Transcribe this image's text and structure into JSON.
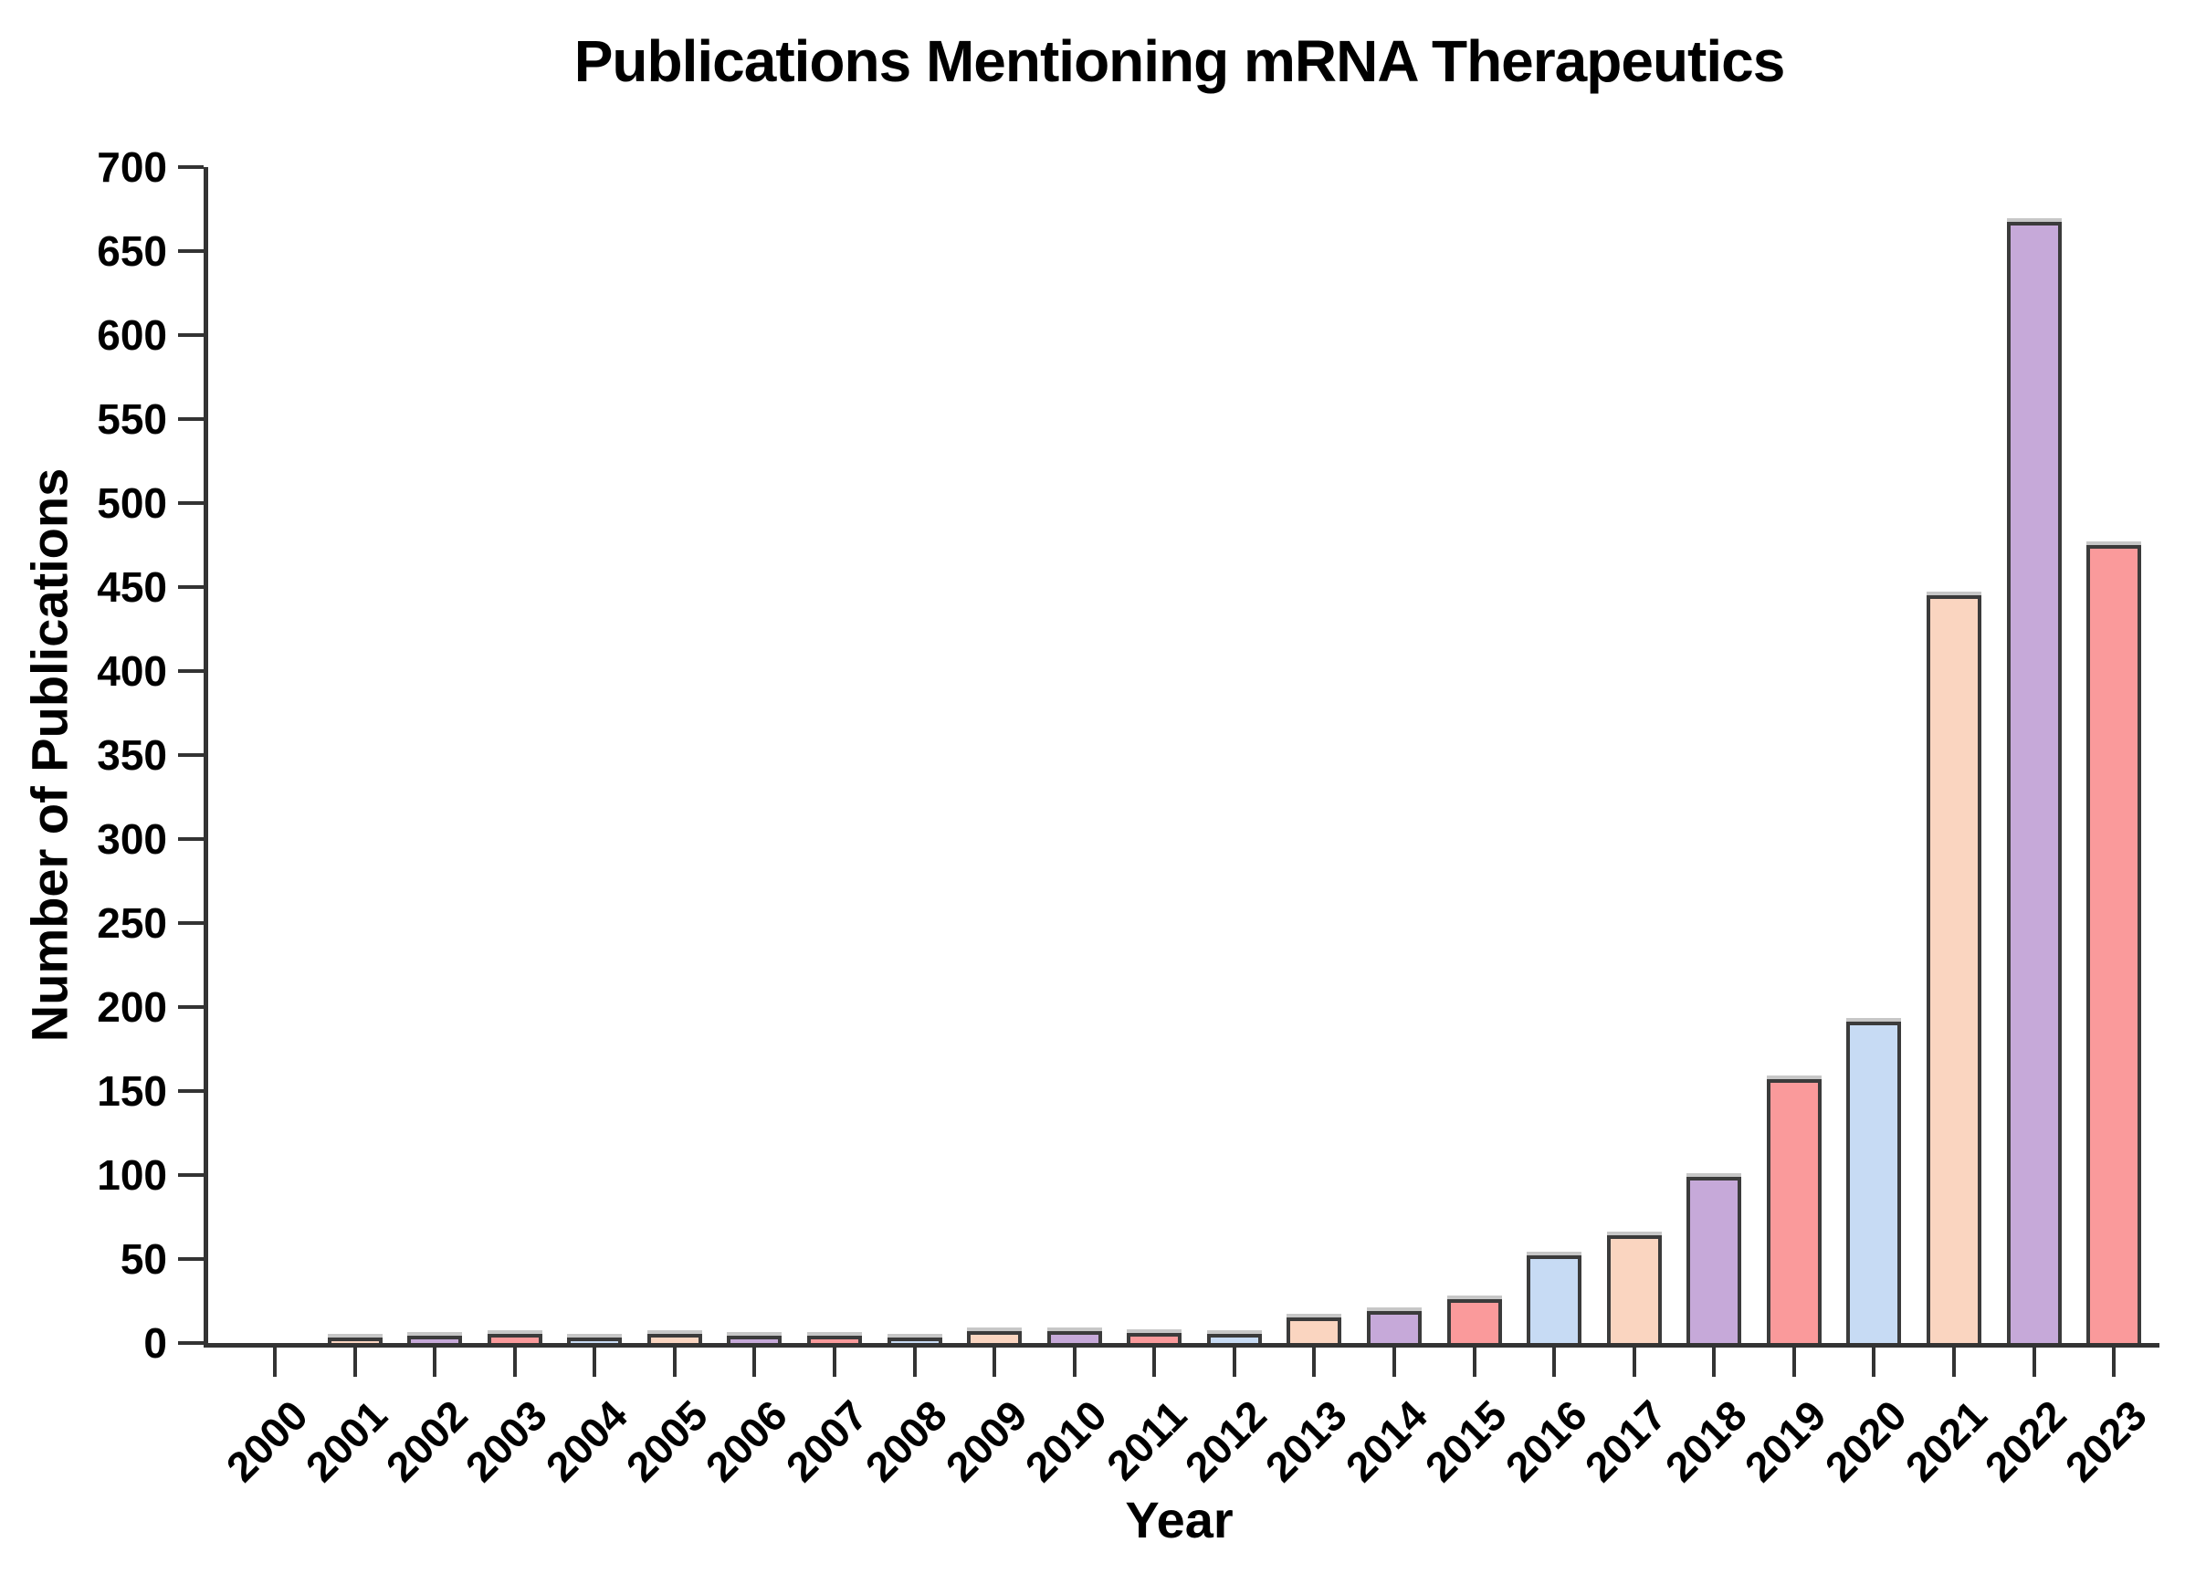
{
  "chart_data": {
    "type": "bar",
    "title": "Publications Mentioning mRNA Therapeutics",
    "xlabel": "Year",
    "ylabel": "Number of Publications",
    "categories": [
      "2000",
      "2001",
      "2002",
      "2003",
      "2004",
      "2005",
      "2006",
      "2007",
      "2008",
      "2009",
      "2010",
      "2011",
      "2012",
      "2013",
      "2014",
      "2015",
      "2016",
      "2017",
      "2018",
      "2019",
      "2020",
      "2021",
      "2022",
      "2023"
    ],
    "values": [
      0,
      1,
      2,
      3,
      1,
      3,
      2,
      2,
      1,
      5,
      5,
      4,
      3,
      13,
      17,
      24,
      50,
      62,
      97,
      155,
      189,
      443,
      665,
      473
    ],
    "bar_colors": [
      "#C7DBF4",
      "#FAD5C0",
      "#C6A9D9",
      "#FA9A9B",
      "#C7DBF4",
      "#FAD5C0",
      "#C6A9D9",
      "#FA9A9B",
      "#C7DBF4",
      "#FAD5C0",
      "#C6A9D9",
      "#FA9A9B",
      "#C7DBF4",
      "#FAD5C0",
      "#C6A9D9",
      "#FA9A9B",
      "#C7DBF4",
      "#FAD5C0",
      "#C6A9D9",
      "#FA9A9B",
      "#C7DBF4",
      "#FAD5C0",
      "#C6A9D9",
      "#FA9A9B"
    ],
    "color_cycle": {
      "light_blue": "#C7DBF4",
      "peach": "#FAD5C0",
      "light_purple": "#C6A9D9",
      "salmon": "#FA9A9B"
    },
    "bar_edge_color": "#3b3b3b",
    "axis_color": "#333333",
    "text_color": "#000000",
    "ylim": [
      0,
      700
    ],
    "yticks": [
      0,
      50,
      100,
      150,
      200,
      250,
      300,
      350,
      400,
      450,
      500,
      550,
      600,
      650,
      700
    ],
    "xtick_rotation_deg": 45,
    "grid": false,
    "legend_position": "none"
  }
}
